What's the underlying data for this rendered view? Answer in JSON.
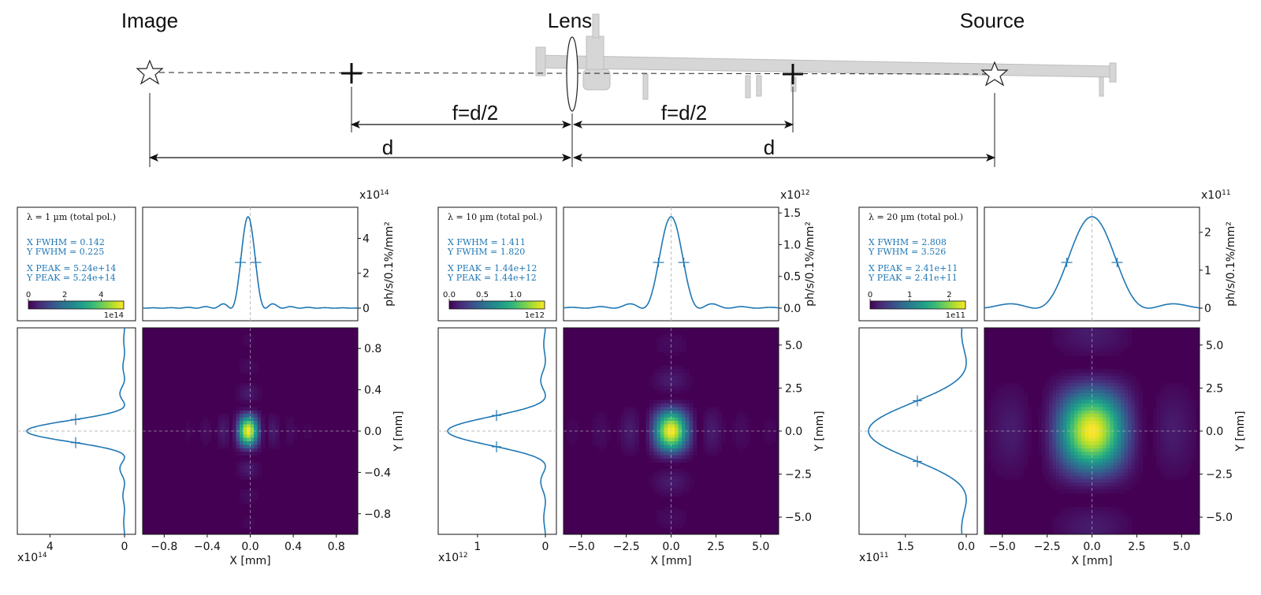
{
  "schematic": {
    "labels": {
      "image": "Image",
      "lens": "Lens",
      "source": "Source"
    },
    "dims": {
      "focal_left": "f=d/2",
      "focal_right": "f=d/2",
      "d_left": "d",
      "d_right": "d"
    }
  },
  "common": {
    "x_axis_label": "X [mm]",
    "y_axis_label": "Y [mm]",
    "intensity_label": "ph/s/0.1%/mm²",
    "line_color": "#1f77b4",
    "colormap": [
      "#440154",
      "#482878",
      "#3e4989",
      "#31688e",
      "#26828e",
      "#1f9e89",
      "#35b779",
      "#6ece58",
      "#b5de2b",
      "#fde725"
    ]
  },
  "chart_data": [
    {
      "type": "heatmap",
      "info": {
        "wavelength": "λ = 1 µm   (total pol.)",
        "x_fwhm": "X FWHM = 0.142",
        "y_fwhm": "Y FWHM = 0.225",
        "x_peak": "X PEAK = 5.24e+14",
        "y_peak": "Y PEAK = 5.24e+14"
      },
      "colorbar": {
        "ticks": [
          "0",
          "2",
          "4"
        ],
        "exponent": "1e14"
      },
      "exponent": "x10",
      "exponent_power": "14",
      "xlim": [
        -1,
        1
      ],
      "ylim": [
        -1,
        1
      ],
      "x_ticks": [
        "−0.8",
        "−0.4",
        "0.0",
        "0.4",
        "0.8"
      ],
      "y_ticks": [
        "0.8",
        "0.4",
        "0.0",
        "−0.4",
        "−0.8"
      ],
      "profile_ticks": [
        "0",
        "2",
        "4"
      ],
      "side_ticks": [
        "4",
        "0"
      ],
      "peak": 5.24,
      "fwhm_x": 0.142,
      "fwhm_y": 0.225,
      "center_x": -0.02
    },
    {
      "type": "heatmap",
      "info": {
        "wavelength": "λ = 10 µm   (total pol.)",
        "x_fwhm": "X FWHM = 1.411",
        "y_fwhm": "Y FWHM = 1.820",
        "x_peak": "X PEAK = 1.44e+12",
        "y_peak": "Y PEAK = 1.44e+12"
      },
      "colorbar": {
        "ticks": [
          "0.0",
          "0.5",
          "1.0"
        ],
        "exponent": "1e12"
      },
      "exponent": "x10",
      "exponent_power": "12",
      "xlim": [
        -6,
        6
      ],
      "ylim": [
        -6,
        6
      ],
      "x_ticks": [
        "−5.0",
        "−2.5",
        "0.0",
        "2.5",
        "5.0"
      ],
      "y_ticks": [
        "5.0",
        "2.5",
        "0.0",
        "−2.5",
        "−5.0"
      ],
      "profile_ticks": [
        "0.0",
        "0.5",
        "1.0",
        "1.5"
      ],
      "side_ticks": [
        "1",
        "0"
      ],
      "peak": 1.44,
      "fwhm_x": 1.411,
      "fwhm_y": 1.82,
      "center_x": 0
    },
    {
      "type": "heatmap",
      "info": {
        "wavelength": "λ = 20 µm   (total pol.)",
        "x_fwhm": "X FWHM = 2.808",
        "y_fwhm": "Y FWHM = 3.526",
        "x_peak": "X PEAK = 2.41e+11",
        "y_peak": "Y PEAK = 2.41e+11"
      },
      "colorbar": {
        "ticks": [
          "0",
          "1",
          "2"
        ],
        "exponent": "1e11"
      },
      "exponent": "x10",
      "exponent_power": "11",
      "xlim": [
        -6,
        6
      ],
      "ylim": [
        -6,
        6
      ],
      "x_ticks": [
        "−5.0",
        "−2.5",
        "0.0",
        "2.5",
        "5.0"
      ],
      "y_ticks": [
        "5.0",
        "2.5",
        "0.0",
        "−2.5",
        "−5.0"
      ],
      "profile_ticks": [
        "0",
        "1",
        "2"
      ],
      "side_ticks": [
        "1.5",
        "0.0"
      ],
      "peak": 2.41,
      "fwhm_x": 2.808,
      "fwhm_y": 3.526,
      "center_x": 0
    }
  ]
}
